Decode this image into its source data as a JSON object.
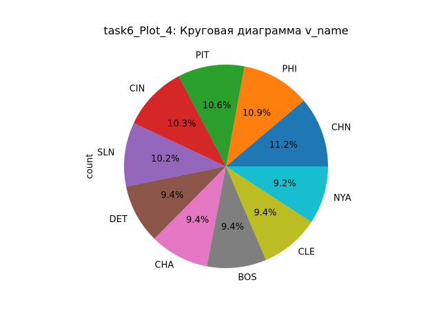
{
  "chart_data": {
    "type": "pie",
    "title": "task6_Plot_4: Круговая диаграмма v_name",
    "ylabel": "count",
    "categories": [
      "CHN",
      "PHI",
      "PIT",
      "CIN",
      "SLN",
      "DET",
      "CHA",
      "BOS",
      "CLE",
      "NYA"
    ],
    "values": [
      11.2,
      10.9,
      10.6,
      10.3,
      10.2,
      9.4,
      9.4,
      9.4,
      9.4,
      9.2
    ],
    "percent_labels": [
      "11.2%",
      "10.9%",
      "10.6%",
      "10.3%",
      "10.2%",
      "9.4%",
      "9.4%",
      "9.4%",
      "9.4%",
      "9.2%"
    ],
    "colors": [
      "#1f77b4",
      "#ff7f0e",
      "#2ca02c",
      "#d62728",
      "#9467bd",
      "#8c564b",
      "#e377c2",
      "#7f7f7f",
      "#bcbd22",
      "#17becf"
    ],
    "start_angle_deg": 0,
    "direction": "counterclockwise",
    "legend": "none"
  }
}
